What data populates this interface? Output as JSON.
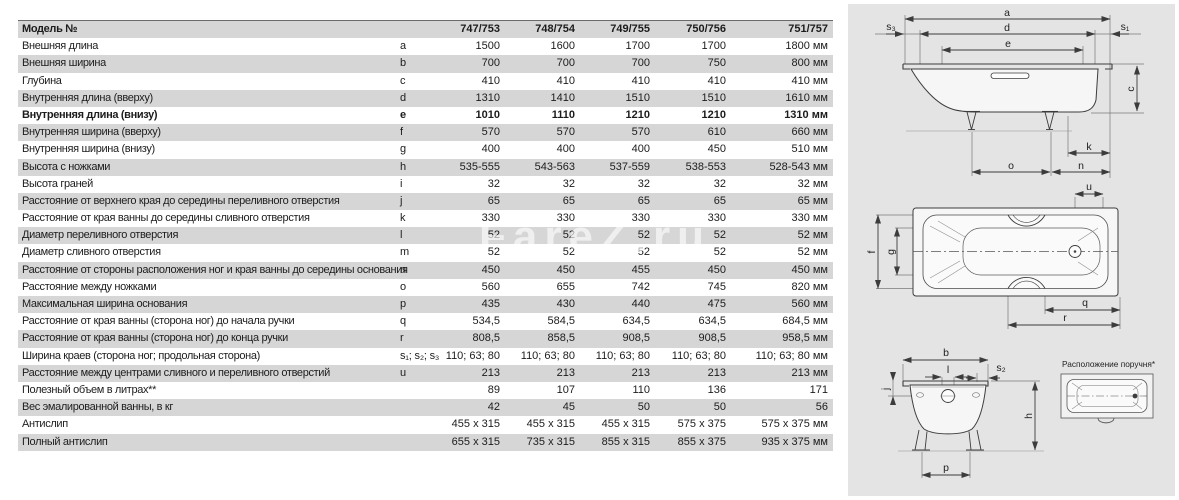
{
  "watermark": "FareZ.ru",
  "table": {
    "header": {
      "label": "Модель №",
      "cols": [
        "747/753",
        "748/754",
        "749/755",
        "750/756",
        "751/757"
      ]
    },
    "rows": [
      {
        "label": "Внешняя длина",
        "letter": "a",
        "bold": false,
        "values": [
          "1500",
          "1600",
          "1700",
          "1700",
          "1800 мм"
        ]
      },
      {
        "label": "Внешняя ширина",
        "letter": "b",
        "bold": false,
        "values": [
          "700",
          "700",
          "700",
          "750",
          "800 мм"
        ]
      },
      {
        "label": "Глубина",
        "letter": "c",
        "bold": false,
        "values": [
          "410",
          "410",
          "410",
          "410",
          "410 мм"
        ]
      },
      {
        "label": "Внутренняя длина (вверху)",
        "letter": "d",
        "bold": false,
        "values": [
          "1310",
          "1410",
          "1510",
          "1510",
          "1610 мм"
        ]
      },
      {
        "label": "Внутренняя длина (внизу)",
        "letter": "e",
        "bold": true,
        "values": [
          "1010",
          "1110",
          "1210",
          "1210",
          "1310 мм"
        ]
      },
      {
        "label": "Внутренняя ширина (вверху)",
        "letter": "f",
        "bold": false,
        "values": [
          "570",
          "570",
          "570",
          "610",
          "660 мм"
        ]
      },
      {
        "label": "Внутренняя ширина (внизу)",
        "letter": "g",
        "bold": false,
        "values": [
          "400",
          "400",
          "400",
          "450",
          "510 мм"
        ]
      },
      {
        "label": "Высота с ножками",
        "letter": "h",
        "bold": false,
        "values": [
          "535-555",
          "543-563",
          "537-559",
          "538-553",
          "528-543 мм"
        ]
      },
      {
        "label": "Высота граней",
        "letter": "i",
        "bold": false,
        "values": [
          "32",
          "32",
          "32",
          "32",
          "32 мм"
        ]
      },
      {
        "label": "Расстояние от верхнего края до середины переливного отверстия",
        "letter": "j",
        "bold": false,
        "values": [
          "65",
          "65",
          "65",
          "65",
          "65 мм"
        ]
      },
      {
        "label": "Расстояние от края ванны до середины сливного отверстия",
        "letter": "k",
        "bold": false,
        "values": [
          "330",
          "330",
          "330",
          "330",
          "330 мм"
        ]
      },
      {
        "label": "Диаметр переливного отверстия",
        "letter": "l",
        "bold": false,
        "values": [
          "52",
          "52",
          "52",
          "52",
          "52 мм"
        ]
      },
      {
        "label": "Диаметр сливного отверстия",
        "letter": "m",
        "bold": false,
        "values": [
          "52",
          "52",
          "52",
          "52",
          "52 мм"
        ]
      },
      {
        "label": "Расстояние от стороны расположения ног и края ванны до середины основания",
        "letter": "n",
        "bold": false,
        "values": [
          "450",
          "450",
          "455",
          "450",
          "450 мм"
        ]
      },
      {
        "label": "Расстояние между ножками",
        "letter": "o",
        "bold": false,
        "values": [
          "560",
          "655",
          "742",
          "745",
          "820 мм"
        ]
      },
      {
        "label": "Максимальная ширина основания",
        "letter": "p",
        "bold": false,
        "values": [
          "435",
          "430",
          "440",
          "475",
          "560 мм"
        ]
      },
      {
        "label": "Расстояние от края ванны (сторона ног) до начала ручки",
        "letter": "q",
        "bold": false,
        "values": [
          "534,5",
          "584,5",
          "634,5",
          "634,5",
          "684,5 мм"
        ]
      },
      {
        "label": "Расстояние от края ванны (сторона ног) до конца ручки",
        "letter": "r",
        "bold": false,
        "values": [
          "808,5",
          "858,5",
          "908,5",
          "908,5",
          "958,5 мм"
        ]
      },
      {
        "label": "Ширина краев (сторона ног; продольная сторона)",
        "letter": "s₁; s₂; s₃",
        "bold": false,
        "values": [
          "110; 63; 80",
          "110; 63; 80",
          "110; 63; 80",
          "110; 63; 80",
          "110; 63; 80 мм"
        ]
      },
      {
        "label": "Расстояние между центрами сливного и переливного отверстий",
        "letter": "u",
        "bold": false,
        "values": [
          "213",
          "213",
          "213",
          "213",
          "213 мм"
        ]
      },
      {
        "label": "Полезный объем в литрах**",
        "letter": "",
        "bold": false,
        "values": [
          "89",
          "107",
          "110",
          "136",
          "171"
        ]
      },
      {
        "label": "Вес эмалированной ванны, в кг",
        "letter": "",
        "bold": false,
        "values": [
          "42",
          "45",
          "50",
          "50",
          "56"
        ]
      },
      {
        "label": "Антислип",
        "letter": "",
        "bold": false,
        "values": [
          "455 x 315",
          "455 x 315",
          "455 x 315",
          "575 x 375",
          "575 x 375 мм"
        ]
      },
      {
        "label": "Полный антислип",
        "letter": "",
        "bold": false,
        "values": [
          "655 x 315",
          "735 x 315",
          "855 x 315",
          "855 x 375",
          "935 x 375 мм"
        ]
      }
    ]
  },
  "diagrams": {
    "side": {
      "a": "a",
      "d": "d",
      "e": "e",
      "s3": "s₃",
      "s1": "s₁",
      "c": "c",
      "k": "k",
      "o": "o",
      "n": "n"
    },
    "top": {
      "u": "u",
      "f": "f",
      "g": "g",
      "q": "q",
      "r": "r"
    },
    "end": {
      "b": "b",
      "l": "l",
      "s2": "s₂",
      "j": "j",
      "h": "h",
      "p": "p"
    },
    "handle_caption": "Расположение поручня*"
  }
}
